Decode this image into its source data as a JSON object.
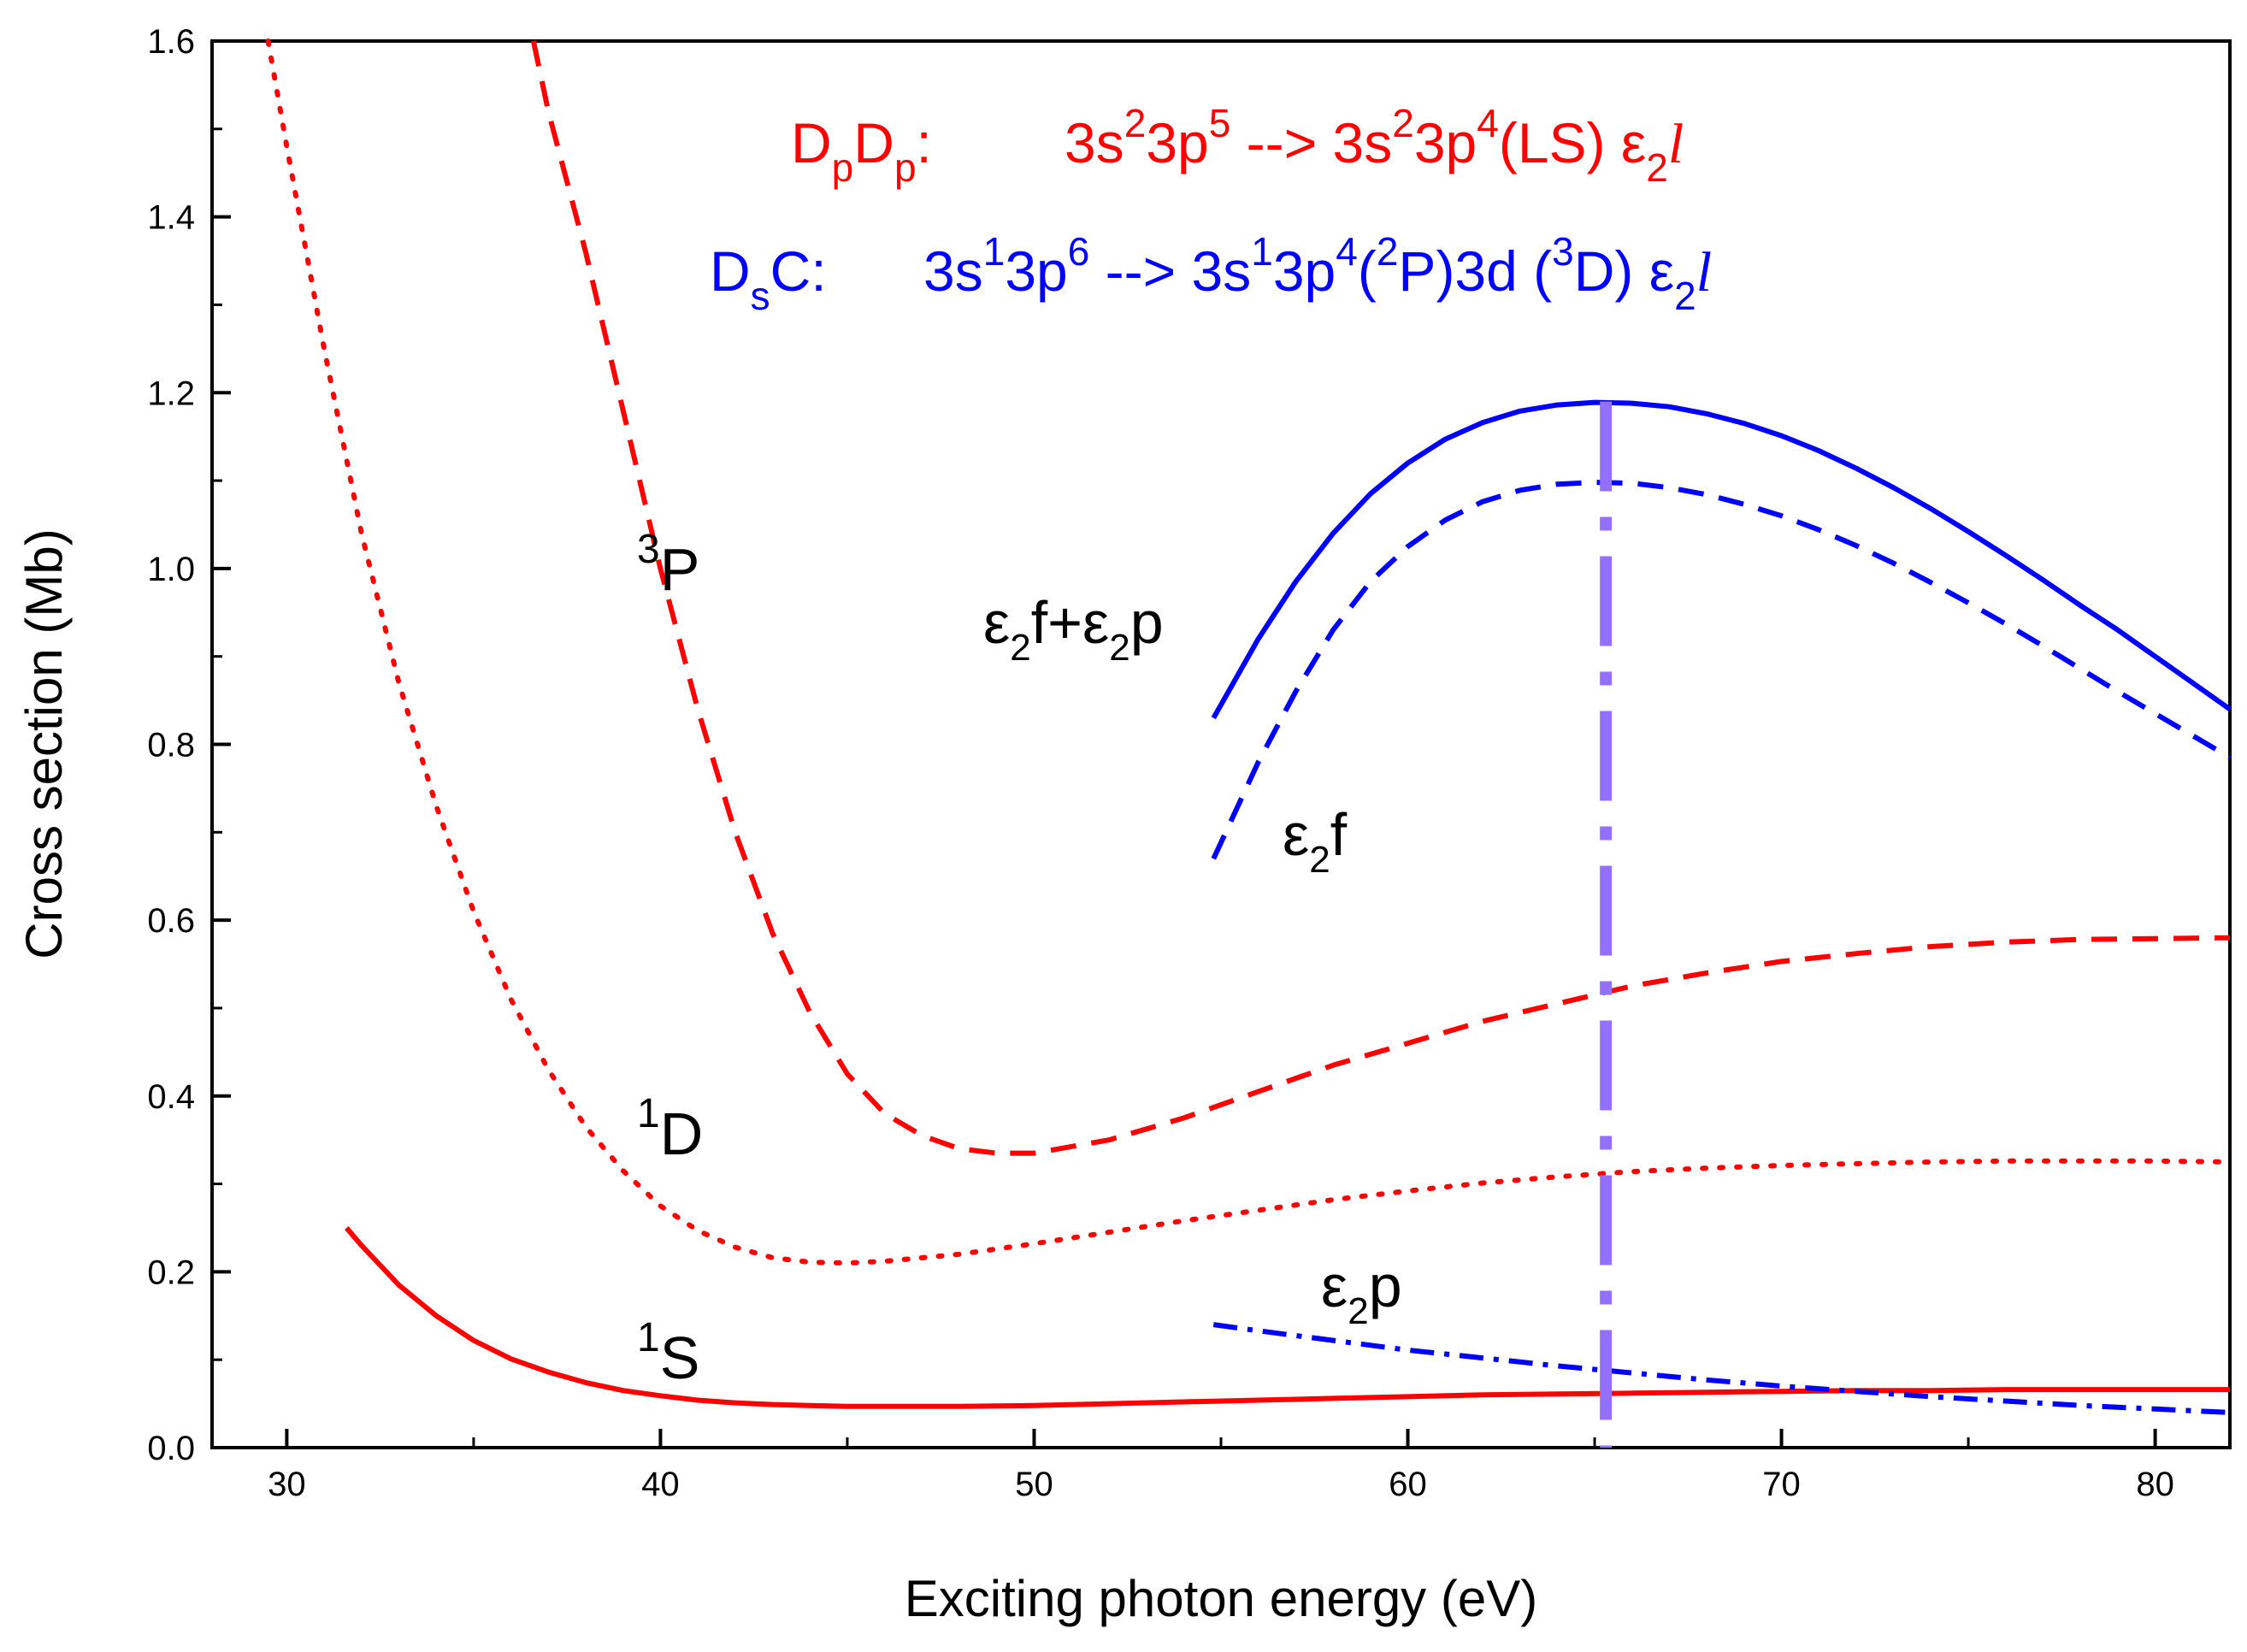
{
  "chart_data": {
    "type": "line",
    "xlabel": "Exciting photon energy (eV)",
    "ylabel": "Cross section (Mb)",
    "xlim": [
      28,
      82
    ],
    "ylim": [
      0.0,
      1.6
    ],
    "x_ticks": [
      "30",
      "40",
      "50",
      "60",
      "70",
      "80"
    ],
    "y_ticks": [
      "0.0",
      "0.2",
      "0.4",
      "0.6",
      "0.8",
      "1.0",
      "1.2",
      "1.4",
      "1.6"
    ],
    "grid": false,
    "colors": {
      "red": "#ff0000",
      "blue": "#0000ff",
      "marker_line": "#9370ff",
      "axis": "#000000"
    },
    "annotations": {
      "dpdp": {
        "prefix": "D",
        "sub1": "p",
        "mid": "D",
        "sub2": "p",
        "suffix": ":",
        "formula_a": "3s",
        "sup_a": "2",
        "formula_b": "3p",
        "sup_b": "5",
        "arrow": " --> ",
        "formula_c": "3s",
        "sup_c": "2",
        "formula_d": "3p",
        "sup_d": "4",
        "formula_e": "(LS) ε",
        "sub_e": "2",
        "italic_l": "l"
      },
      "dsc": {
        "prefix": "D",
        "sub1": "s",
        "mid": "C:",
        "formula_a": "3s",
        "sup_a": "1",
        "formula_b": "3p",
        "sup_b": "6",
        "arrow": " --> ",
        "formula_c": "3s",
        "sup_c": "1",
        "formula_d": "3p",
        "sup_d": "4",
        "formula_e": "(",
        "sup_e": "2",
        "formula_f": "P)3d (",
        "sup_f": "3",
        "formula_g": "D) ε",
        "sub_g": "2",
        "italic_l": "l"
      }
    },
    "curve_labels": [
      {
        "sup": "3",
        "text": "P"
      },
      {
        "sup": "1",
        "text": "D"
      },
      {
        "sup": "1",
        "text": "S"
      },
      {
        "pre": "ε",
        "sub": "2",
        "text": "f+ε",
        "sub2": "2",
        "post": "p"
      },
      {
        "pre": "ε",
        "sub": "2",
        "text": "f"
      },
      {
        "pre": "ε",
        "sub": "2",
        "text": "p"
      }
    ],
    "marker_line_x": 65.3,
    "series": [
      {
        "name": "3P",
        "color": "#ff0000",
        "style": "dashed",
        "x": [
          36.6,
          37,
          38,
          39,
          40,
          41,
          42,
          43,
          44,
          45,
          46,
          47,
          48,
          49,
          50,
          52,
          54,
          56,
          58,
          60,
          62,
          64,
          66,
          68,
          70,
          72,
          74,
          76,
          78,
          80,
          82
        ],
        "y": [
          1.6,
          1.52,
          1.36,
          1.18,
          1.0,
          0.84,
          0.7,
          0.585,
          0.495,
          0.425,
          0.38,
          0.355,
          0.34,
          0.335,
          0.335,
          0.35,
          0.375,
          0.405,
          0.435,
          0.46,
          0.485,
          0.505,
          0.525,
          0.54,
          0.553,
          0.562,
          0.57,
          0.575,
          0.578,
          0.579,
          0.58
        ]
      },
      {
        "name": "1D",
        "color": "#ff0000",
        "style": "dotted",
        "x": [
          29.5,
          30,
          31,
          32,
          33,
          34,
          35,
          36,
          37,
          38,
          39,
          40,
          41,
          42,
          43,
          44,
          45,
          46,
          48,
          50,
          52,
          54,
          56,
          58,
          60,
          62,
          64,
          66,
          68,
          70,
          72,
          74,
          76,
          78,
          80,
          82
        ],
        "y": [
          1.6,
          1.48,
          1.25,
          1.04,
          0.87,
          0.73,
          0.61,
          0.51,
          0.43,
          0.365,
          0.315,
          0.275,
          0.247,
          0.228,
          0.216,
          0.211,
          0.21,
          0.212,
          0.22,
          0.232,
          0.245,
          0.258,
          0.27,
          0.282,
          0.292,
          0.301,
          0.308,
          0.314,
          0.318,
          0.321,
          0.323,
          0.325,
          0.326,
          0.326,
          0.326,
          0.325
        ]
      },
      {
        "name": "1S",
        "color": "#ff0000",
        "style": "solid",
        "x": [
          31.6,
          32,
          33,
          34,
          35,
          36,
          37,
          38,
          39,
          40,
          41,
          42,
          43,
          44,
          45,
          46,
          48,
          50,
          52,
          54,
          56,
          58,
          60,
          62,
          64,
          66,
          68,
          70,
          72,
          74,
          76,
          78,
          80,
          82
        ],
        "y": [
          0.25,
          0.23,
          0.185,
          0.15,
          0.122,
          0.101,
          0.086,
          0.074,
          0.065,
          0.059,
          0.054,
          0.051,
          0.049,
          0.048,
          0.047,
          0.047,
          0.047,
          0.048,
          0.05,
          0.052,
          0.054,
          0.056,
          0.058,
          0.06,
          0.061,
          0.062,
          0.063,
          0.064,
          0.065,
          0.065,
          0.066,
          0.066,
          0.066,
          0.066
        ]
      },
      {
        "name": "ε2f+ε2p",
        "color": "#0000ff",
        "style": "solid",
        "x": [
          54.8,
          56,
          57,
          58,
          59,
          60,
          61,
          62,
          63,
          64,
          65,
          66,
          67,
          68,
          69,
          70,
          71,
          72,
          73,
          74,
          75,
          76,
          77,
          78,
          79,
          80,
          81,
          82
        ],
        "y": [
          0.83,
          0.92,
          0.985,
          1.04,
          1.085,
          1.12,
          1.147,
          1.166,
          1.179,
          1.186,
          1.189,
          1.188,
          1.184,
          1.176,
          1.165,
          1.151,
          1.134,
          1.114,
          1.092,
          1.068,
          1.042,
          1.015,
          0.987,
          0.958,
          0.93,
          0.9,
          0.87,
          0.84
        ]
      },
      {
        "name": "ε2f",
        "color": "#0000ff",
        "style": "dashed",
        "x": [
          54.8,
          56,
          57,
          58,
          59,
          60,
          61,
          62,
          63,
          64,
          65,
          66,
          67,
          68,
          69,
          70,
          71,
          72,
          73,
          74,
          75,
          76,
          77,
          78,
          79,
          80,
          81,
          82
        ],
        "y": [
          0.67,
          0.78,
          0.86,
          0.93,
          0.985,
          1.025,
          1.055,
          1.076,
          1.089,
          1.096,
          1.098,
          1.097,
          1.092,
          1.084,
          1.073,
          1.06,
          1.044,
          1.026,
          1.006,
          0.984,
          0.961,
          0.937,
          0.912,
          0.886,
          0.86,
          0.835,
          0.81,
          0.785
        ]
      },
      {
        "name": "ε2p",
        "color": "#0000ff",
        "style": "dashdot",
        "x": [
          54.8,
          56,
          58,
          60,
          62,
          64,
          66,
          68,
          70,
          72,
          74,
          76,
          78,
          80,
          82
        ],
        "y": [
          0.14,
          0.133,
          0.122,
          0.111,
          0.102,
          0.093,
          0.085,
          0.077,
          0.07,
          0.064,
          0.058,
          0.053,
          0.048,
          0.044,
          0.04
        ]
      }
    ]
  }
}
